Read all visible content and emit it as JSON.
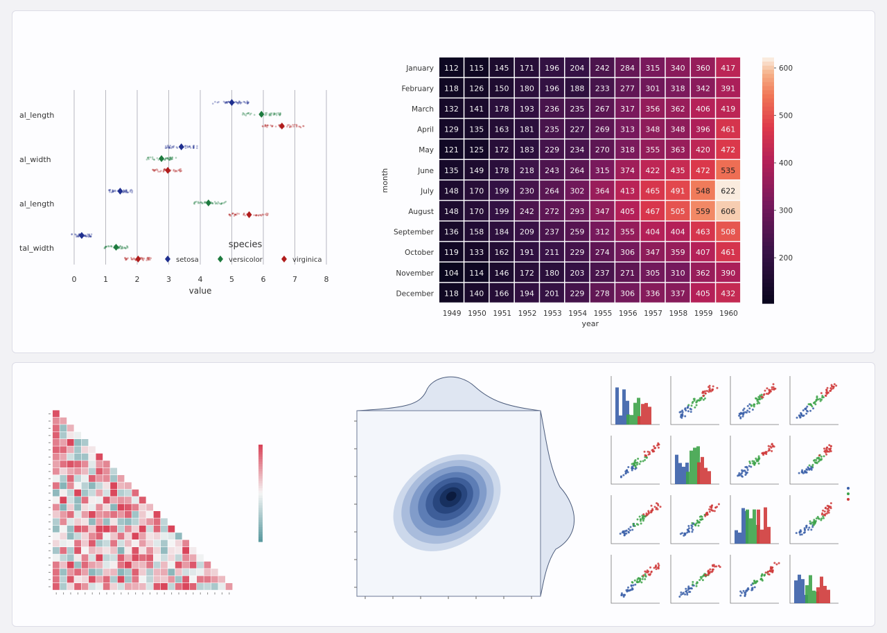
{
  "chart_data": [
    {
      "type": "scatter",
      "subtype": "stripplot-with-means",
      "categories": [
        "al_length",
        "al_width",
        "al_length",
        "tal_width"
      ],
      "xlabel": "value",
      "xticks": [
        0,
        1,
        2,
        3,
        4,
        5,
        6,
        7,
        8
      ],
      "xlim": [
        0,
        8
      ],
      "legend_title": "species",
      "legend_position": "bottom-right",
      "series": [
        {
          "name": "setosa",
          "color": "#1f2f8f",
          "means": [
            5.0,
            3.4,
            1.46,
            0.24
          ]
        },
        {
          "name": "versicolor",
          "color": "#1d7a3e",
          "means": [
            5.94,
            2.77,
            4.26,
            1.33
          ]
        },
        {
          "name": "virginica",
          "color": "#b01c1c",
          "means": [
            6.59,
            2.97,
            5.55,
            2.03
          ]
        }
      ]
    },
    {
      "type": "heatmap",
      "xlabel": "year",
      "ylabel": "month",
      "x": [
        1949,
        1950,
        1951,
        1952,
        1953,
        1954,
        1955,
        1956,
        1957,
        1958,
        1959,
        1960
      ],
      "x_tick_labels": [
        "1949",
        "1950",
        "1951",
        "1952",
        "1953",
        "1954",
        "1955",
        "1956",
        "1957",
        "1958",
        "1959",
        "1960"
      ],
      "y": [
        "January",
        "February",
        "March",
        "April",
        "May",
        "June",
        "July",
        "August",
        "September",
        "October",
        "November",
        "December"
      ],
      "values": [
        [
          112,
          115,
          145,
          171,
          196,
          204,
          242,
          284,
          315,
          340,
          360,
          417
        ],
        [
          118,
          126,
          150,
          180,
          196,
          188,
          233,
          277,
          301,
          318,
          342,
          391
        ],
        [
          132,
          141,
          178,
          193,
          236,
          235,
          267,
          317,
          356,
          362,
          406,
          419
        ],
        [
          129,
          135,
          163,
          181,
          235,
          227,
          269,
          313,
          348,
          348,
          396,
          461
        ],
        [
          121,
          125,
          172,
          183,
          229,
          234,
          270,
          318,
          355,
          363,
          420,
          472
        ],
        [
          135,
          149,
          178,
          218,
          243,
          264,
          315,
          374,
          422,
          435,
          472,
          535
        ],
        [
          148,
          170,
          199,
          230,
          264,
          302,
          364,
          413,
          465,
          491,
          548,
          622
        ],
        [
          148,
          170,
          199,
          242,
          272,
          293,
          347,
          405,
          467,
          505,
          559,
          606
        ],
        [
          136,
          158,
          184,
          209,
          237,
          259,
          312,
          355,
          404,
          404,
          463,
          508
        ],
        [
          119,
          133,
          162,
          191,
          211,
          229,
          274,
          306,
          347,
          359,
          407,
          461
        ],
        [
          104,
          114,
          146,
          172,
          180,
          203,
          237,
          271,
          305,
          310,
          362,
          390
        ],
        [
          118,
          140,
          166,
          194,
          201,
          229,
          278,
          306,
          336,
          337,
          405,
          432
        ]
      ],
      "colorbar_ticks": [
        200,
        300,
        400,
        500,
        600
      ],
      "colorbar_range": [
        104,
        622
      ],
      "colormap": "rocket",
      "annotate": true
    },
    {
      "type": "heatmap",
      "subtype": "lower-triangle-correlation",
      "size": 26,
      "colormap": "diverging teal-white-red",
      "colors": {
        "negative": "#5b9aa0",
        "zero": "#f5f5f5",
        "positive": "#d9455a"
      }
    },
    {
      "type": "area",
      "subtype": "jointplot-kde",
      "colormap": "Blues",
      "colors": {
        "fill": "#dfe6f2",
        "edge": "#4a5a7a",
        "core": "#0b1a3c"
      }
    },
    {
      "type": "scatter",
      "subtype": "pairplot-4x4",
      "diagonal": "histogram",
      "series": [
        {
          "color": "#3a5fa8"
        },
        {
          "color": "#3ea34a"
        },
        {
          "color": "#cf3a3a"
        }
      ]
    }
  ]
}
